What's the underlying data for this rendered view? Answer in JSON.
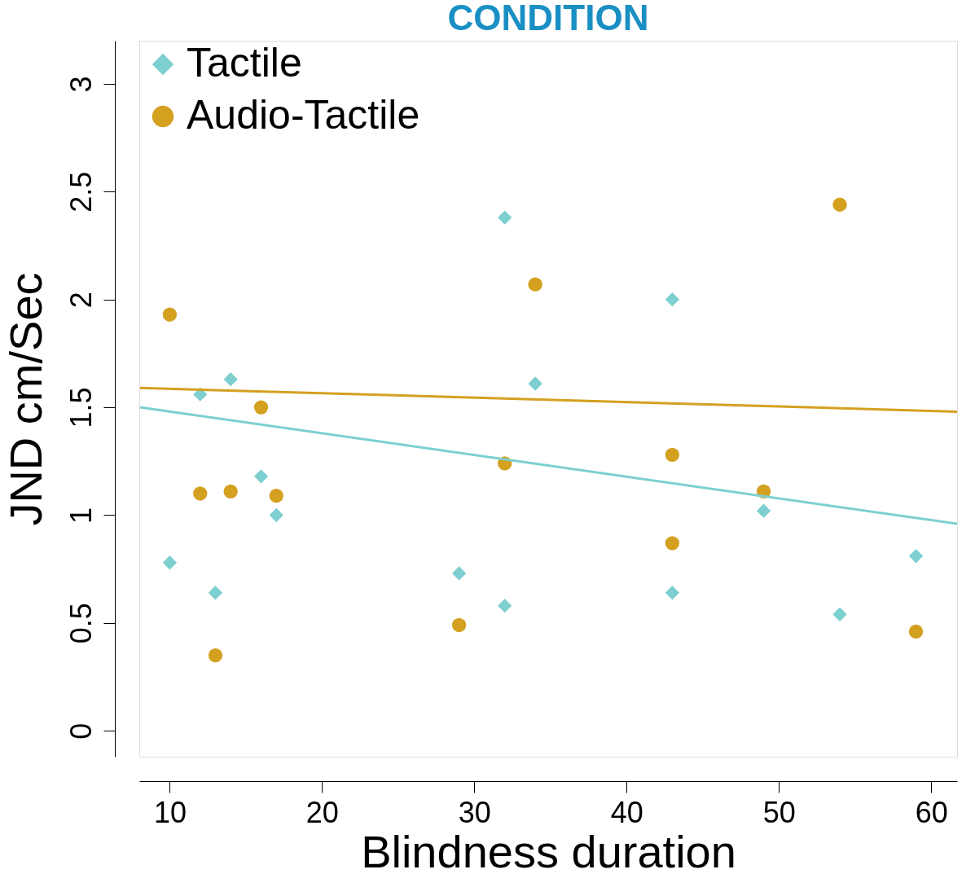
{
  "chart_data": {
    "type": "scatter",
    "title": "CONDITION",
    "xlabel": "Blindness duration",
    "ylabel": "JND cm/Sec",
    "xlim": [
      8,
      61.7
    ],
    "xticks": [
      10,
      20,
      30,
      40,
      50,
      60
    ],
    "ylim": [
      -0.12,
      3.2
    ],
    "yticks": [
      0,
      0.5,
      1,
      1.5,
      2,
      2.5,
      3
    ],
    "grid": false,
    "legend": "top left",
    "series": [
      {
        "name": "Tactile",
        "marker": "diamond",
        "color": "#7ecfcf",
        "x": [
          10,
          12,
          13,
          14,
          16,
          17,
          29,
          32,
          32,
          34,
          43,
          43,
          49,
          54,
          59
        ],
        "values": [
          0.78,
          1.56,
          0.64,
          1.63,
          1.18,
          1.0,
          0.73,
          2.38,
          0.58,
          1.61,
          2.0,
          0.64,
          1.02,
          0.54,
          0.81
        ]
      },
      {
        "name": "Audio-Tactile",
        "marker": "circle",
        "color": "#d4a020",
        "x": [
          10,
          12,
          13,
          14,
          16,
          17,
          29,
          32,
          34,
          43,
          43,
          49,
          54,
          59
        ],
        "values": [
          1.93,
          1.1,
          0.35,
          1.11,
          1.5,
          1.09,
          0.49,
          1.24,
          2.07,
          1.28,
          0.87,
          1.11,
          2.44,
          0.46
        ]
      },
      {
        "type": "line",
        "color": "#7ecfcf",
        "x": [
          8.04,
          61.7
        ],
        "values": [
          1.5,
          0.96
        ]
      },
      {
        "type": "line",
        "color": "#d4a020",
        "x": [
          8.04,
          61.7
        ],
        "values": [
          1.59,
          1.48
        ]
      }
    ]
  }
}
